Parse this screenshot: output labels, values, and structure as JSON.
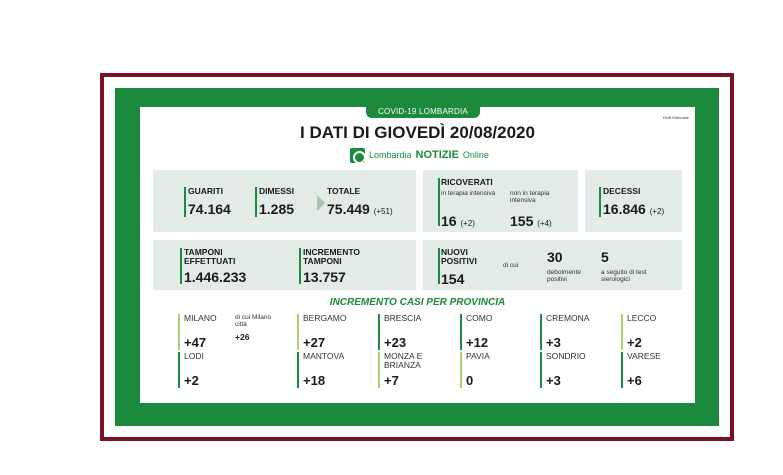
{
  "header": {
    "tag": "COVID-19 LOMBARDIA",
    "corner": "HUB Editoriale",
    "title": "I DATI DI GIOVEDÌ 20/08/2020",
    "logo_text": "Lombardia",
    "logo_bold": "NOTIZIE",
    "logo_suffix": "Online"
  },
  "summary": {
    "guariti_label": "GUARITI",
    "guariti_value": "74.164",
    "dimessi_label": "DIMESSI",
    "dimessi_value": "1.285",
    "totale_label": "TOTALE",
    "totale_value": "75.449",
    "totale_delta": "(+51)"
  },
  "ricoverati": {
    "label": "RICOVERATI",
    "intensiva_label": "in terapia intensiva",
    "intensiva_value": "16",
    "intensiva_delta": "(+2)",
    "non_intensiva_label": "non in terapia intensiva",
    "non_intensiva_value": "155",
    "non_intensiva_delta": "(+4)"
  },
  "decessi": {
    "label": "DECESSI",
    "value": "16.846",
    "delta": "(+2)"
  },
  "tamponi": {
    "effettuati_label": "TAMPONI EFFETTUATI",
    "effettuati_value": "1.446.233",
    "incremento_label": "INCREMENTO TAMPONI",
    "incremento_value": "13.757"
  },
  "positivi": {
    "label": "NUOVI POSITIVI",
    "value": "154",
    "dicui": "di cui",
    "debolmente_value": "30",
    "debolmente_label": "debolmente positivi",
    "test_value": "5",
    "test_label": "a seguito di test sierologici"
  },
  "province_title": "INCREMENTO CASI PER PROVINCIA",
  "province": [
    {
      "name": "MILANO",
      "value": "+47",
      "note": "di cui Milano città",
      "note_value": "+26"
    },
    {
      "name": "BERGAMO",
      "value": "+27"
    },
    {
      "name": "BRESCIA",
      "value": "+23"
    },
    {
      "name": "COMO",
      "value": "+12"
    },
    {
      "name": "CREMONA",
      "value": "+3"
    },
    {
      "name": "LECCO",
      "value": "+2"
    },
    {
      "name": "LODI",
      "value": "+2"
    },
    {
      "name": "MANTOVA",
      "value": "+18"
    },
    {
      "name": "MONZA E BRIANZA",
      "value": "+7"
    },
    {
      "name": "PAVIA",
      "value": "0"
    },
    {
      "name": "SONDRIO",
      "value": "+3"
    },
    {
      "name": "VARESE",
      "value": "+6"
    }
  ],
  "colors": {
    "green": "#1c8a3c",
    "light_green": "#a7d26e",
    "frame": "#7a1023"
  }
}
